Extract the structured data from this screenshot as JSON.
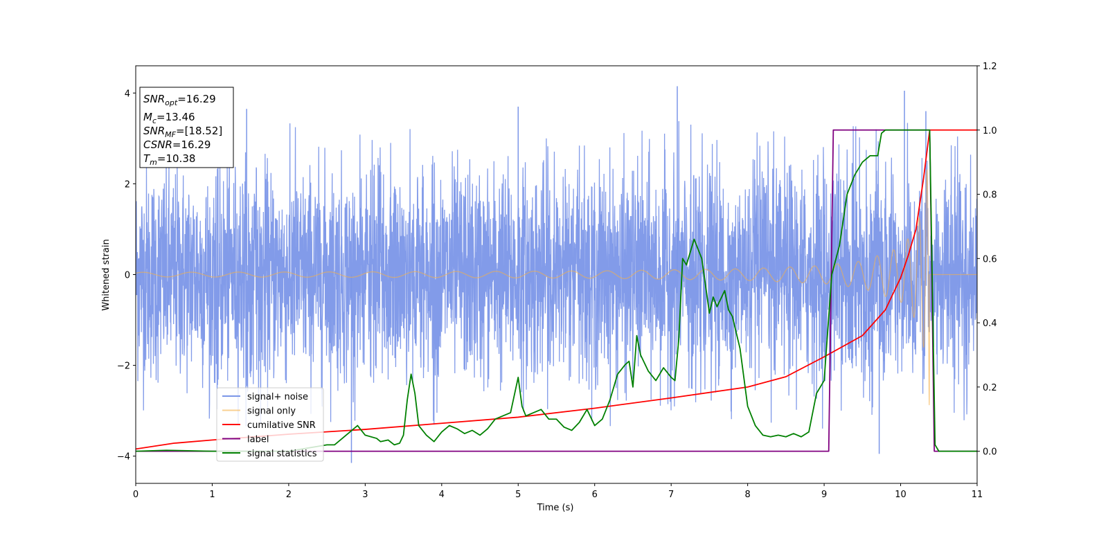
{
  "chart_data": {
    "type": "line",
    "xlabel": "Time (s)",
    "ylabel": "Whitened strain",
    "xlim": [
      0,
      11
    ],
    "ylim_left": [
      -4.6,
      4.6
    ],
    "ylim_right": [
      -0.1,
      1.2
    ],
    "x_ticks": [
      "0",
      "1",
      "2",
      "3",
      "4",
      "5",
      "6",
      "7",
      "8",
      "9",
      "10",
      "11"
    ],
    "y_ticks_left": [
      "4",
      "2",
      "0",
      "−2",
      "−4"
    ],
    "y_ticks_right": [
      "1.2",
      "1.0",
      "0.8",
      "0.6",
      "0.4",
      "0.2",
      "0.0"
    ],
    "legend_position": "lower-left",
    "info_box": {
      "lines": [
        {
          "name": "SNR",
          "sub": "opt",
          "value": "=16.29"
        },
        {
          "name": "M",
          "sub": "c",
          "value": "=13.46"
        },
        {
          "name": "SNR",
          "sub": "MF",
          "value": "=[18.52]"
        },
        {
          "name": "CSNR",
          "sub": "",
          "value": "=16.29"
        },
        {
          "name": "T",
          "sub": "m",
          "value": "=10.38"
        }
      ]
    },
    "series": [
      {
        "name": "signal+ noise",
        "axis": "left",
        "color": "#7b96e8",
        "noise_rms": 1.0,
        "noise_envelope": [
          [
            0,
            -2.6,
            2.6
          ],
          [
            11,
            -2.6,
            2.6
          ]
        ],
        "notable_peaks": [
          [
            1.45,
            3.65
          ],
          [
            5.0,
            3.7
          ],
          [
            7.08,
            4.15
          ],
          [
            10.05,
            4.05
          ],
          [
            10.33,
            3.6
          ],
          [
            2.82,
            -4.15
          ],
          [
            9.72,
            -3.95
          ]
        ]
      },
      {
        "name": "signal only",
        "axis": "left",
        "color": "#f5b04a",
        "description_values": {
          "t_merger": 10.38,
          "amplitude_points": [
            [
              0,
              0.05
            ],
            [
              3,
              0.06
            ],
            [
              6,
              0.08
            ],
            [
              8,
              0.13
            ],
            [
              9,
              0.2
            ],
            [
              9.5,
              0.3
            ],
            [
              10,
              0.6
            ],
            [
              10.2,
              1.0
            ],
            [
              10.3,
              1.6
            ],
            [
              10.35,
              2.4
            ],
            [
              10.38,
              3.0
            ]
          ]
        }
      },
      {
        "name": "cumilative SNR",
        "axis": "right",
        "color": "#ff0000",
        "points": [
          [
            0,
            0.007
          ],
          [
            0.5,
            0.025
          ],
          [
            1,
            0.035
          ],
          [
            2,
            0.053
          ],
          [
            3,
            0.068
          ],
          [
            4,
            0.087
          ],
          [
            5,
            0.106
          ],
          [
            6,
            0.134
          ],
          [
            7,
            0.166
          ],
          [
            8,
            0.2
          ],
          [
            8.5,
            0.232
          ],
          [
            9,
            0.294
          ],
          [
            9.5,
            0.36
          ],
          [
            9.8,
            0.44
          ],
          [
            10.0,
            0.54
          ],
          [
            10.1,
            0.61
          ],
          [
            10.2,
            0.69
          ],
          [
            10.3,
            0.85
          ],
          [
            10.38,
            1.0
          ],
          [
            11,
            1.0
          ]
        ]
      },
      {
        "name": "label",
        "axis": "right",
        "color": "#800080",
        "points": [
          [
            0,
            0.0
          ],
          [
            9.06,
            0.0
          ],
          [
            9.12,
            1.0
          ],
          [
            10.38,
            1.0
          ],
          [
            10.44,
            0.0
          ],
          [
            11,
            0.0
          ]
        ]
      },
      {
        "name": "signal statistics",
        "axis": "right",
        "color": "#008000",
        "points": [
          [
            0,
            0.0
          ],
          [
            0.4,
            0.003
          ],
          [
            1.0,
            0.0
          ],
          [
            2.0,
            0.0
          ],
          [
            2.5,
            0.02
          ],
          [
            2.6,
            0.02
          ],
          [
            2.75,
            0.05
          ],
          [
            2.9,
            0.08
          ],
          [
            3.0,
            0.05
          ],
          [
            3.15,
            0.04
          ],
          [
            3.2,
            0.03
          ],
          [
            3.3,
            0.035
          ],
          [
            3.38,
            0.02
          ],
          [
            3.45,
            0.025
          ],
          [
            3.5,
            0.05
          ],
          [
            3.55,
            0.16
          ],
          [
            3.6,
            0.24
          ],
          [
            3.65,
            0.18
          ],
          [
            3.7,
            0.08
          ],
          [
            3.8,
            0.05
          ],
          [
            3.9,
            0.03
          ],
          [
            4.0,
            0.06
          ],
          [
            4.1,
            0.08
          ],
          [
            4.2,
            0.07
          ],
          [
            4.3,
            0.055
          ],
          [
            4.4,
            0.065
          ],
          [
            4.5,
            0.05
          ],
          [
            4.6,
            0.07
          ],
          [
            4.7,
            0.1
          ],
          [
            4.8,
            0.11
          ],
          [
            4.9,
            0.12
          ],
          [
            5.0,
            0.23
          ],
          [
            5.05,
            0.14
          ],
          [
            5.1,
            0.11
          ],
          [
            5.2,
            0.12
          ],
          [
            5.3,
            0.13
          ],
          [
            5.4,
            0.1
          ],
          [
            5.5,
            0.1
          ],
          [
            5.6,
            0.075
          ],
          [
            5.7,
            0.065
          ],
          [
            5.8,
            0.09
          ],
          [
            5.9,
            0.13
          ],
          [
            6.0,
            0.08
          ],
          [
            6.1,
            0.1
          ],
          [
            6.2,
            0.16
          ],
          [
            6.3,
            0.24
          ],
          [
            6.4,
            0.27
          ],
          [
            6.45,
            0.28
          ],
          [
            6.5,
            0.2
          ],
          [
            6.55,
            0.36
          ],
          [
            6.6,
            0.3
          ],
          [
            6.7,
            0.25
          ],
          [
            6.8,
            0.22
          ],
          [
            6.9,
            0.26
          ],
          [
            7.0,
            0.23
          ],
          [
            7.05,
            0.22
          ],
          [
            7.1,
            0.35
          ],
          [
            7.15,
            0.6
          ],
          [
            7.2,
            0.58
          ],
          [
            7.3,
            0.66
          ],
          [
            7.4,
            0.6
          ],
          [
            7.5,
            0.43
          ],
          [
            7.55,
            0.48
          ],
          [
            7.6,
            0.45
          ],
          [
            7.7,
            0.5
          ],
          [
            7.75,
            0.44
          ],
          [
            7.8,
            0.42
          ],
          [
            7.9,
            0.32
          ],
          [
            8.0,
            0.14
          ],
          [
            8.1,
            0.08
          ],
          [
            8.2,
            0.05
          ],
          [
            8.3,
            0.045
          ],
          [
            8.4,
            0.05
          ],
          [
            8.5,
            0.045
          ],
          [
            8.6,
            0.055
          ],
          [
            8.7,
            0.045
          ],
          [
            8.8,
            0.06
          ],
          [
            8.9,
            0.18
          ],
          [
            9.0,
            0.22
          ],
          [
            9.1,
            0.55
          ],
          [
            9.2,
            0.64
          ],
          [
            9.25,
            0.72
          ],
          [
            9.3,
            0.8
          ],
          [
            9.4,
            0.86
          ],
          [
            9.5,
            0.9
          ],
          [
            9.6,
            0.92
          ],
          [
            9.7,
            0.92
          ],
          [
            9.75,
            0.99
          ],
          [
            9.8,
            1.0
          ],
          [
            10.0,
            1.0
          ],
          [
            10.3,
            1.0
          ],
          [
            10.38,
            1.0
          ],
          [
            10.45,
            0.02
          ],
          [
            10.5,
            0.0
          ],
          [
            11.0,
            0.0
          ]
        ]
      }
    ]
  }
}
